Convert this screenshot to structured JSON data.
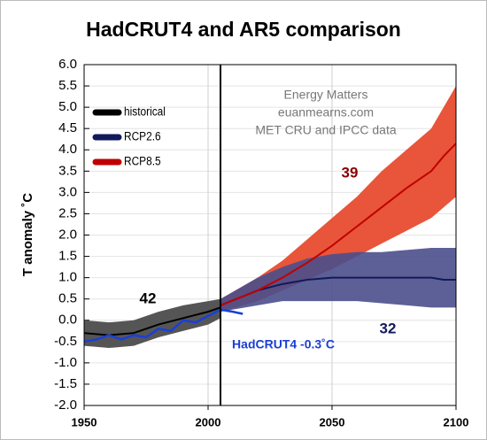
{
  "chart_data": {
    "type": "line",
    "title": "HadCRUT4 and AR5 comparison",
    "ylabel": "T anomaly ˚C",
    "xlim": [
      1950,
      2100
    ],
    "ylim": [
      -2,
      6
    ],
    "xticks": [
      1950,
      2000,
      2050,
      2100
    ],
    "yticks": [
      {
        "value": 6,
        "label": "6.0"
      },
      5.5,
      {
        "value": 5,
        "label": "5.0"
      },
      4.5,
      {
        "value": 4,
        "label": "4.0"
      },
      3.5,
      {
        "value": 3,
        "label": "3.0"
      },
      2.5,
      {
        "value": 2,
        "label": "2.0"
      },
      1.5,
      {
        "value": 1,
        "label": "1.0"
      },
      0.5,
      {
        "value": 0,
        "label": "0.0"
      },
      -0.5,
      {
        "value": -1,
        "label": "-1.0"
      },
      -1.5,
      {
        "value": -2,
        "label": "-2.0"
      }
    ],
    "grid": true,
    "vline": 2005,
    "annotations": [
      "Energy Matters",
      "euanmearns.com",
      "MET CRU and IPCC data",
      "39",
      "42",
      "32",
      "HadCRUT4 -0.3˚C"
    ],
    "series": [
      {
        "name": "historical",
        "color": "#000000",
        "band_color": "#555555",
        "x": [
          1950,
          1960,
          1970,
          1980,
          1990,
          2000,
          2005
        ],
        "values": [
          -0.3,
          -0.35,
          -0.3,
          -0.1,
          0.05,
          0.2,
          0.3
        ],
        "lower": [
          -0.6,
          -0.65,
          -0.6,
          -0.4,
          -0.25,
          -0.1,
          0.05
        ],
        "upper": [
          0.0,
          -0.05,
          0.0,
          0.2,
          0.35,
          0.45,
          0.5
        ]
      },
      {
        "name": "RCP2.6",
        "color": "#111a5a",
        "band_color": "#4a4f8c",
        "x": [
          2005,
          2020,
          2030,
          2040,
          2050,
          2060,
          2070,
          2080,
          2090,
          2095,
          2100
        ],
        "values": [
          0.35,
          0.7,
          0.85,
          0.95,
          1.0,
          1.0,
          1.0,
          1.0,
          1.0,
          0.95,
          0.95
        ],
        "lower": [
          0.2,
          0.35,
          0.45,
          0.45,
          0.45,
          0.45,
          0.4,
          0.35,
          0.3,
          0.3,
          0.3
        ],
        "upper": [
          0.5,
          1.0,
          1.25,
          1.45,
          1.55,
          1.6,
          1.6,
          1.65,
          1.7,
          1.7,
          1.7
        ]
      },
      {
        "name": "RCP8.5",
        "color": "#c00000",
        "band_color": "#e8553a",
        "x": [
          2005,
          2020,
          2030,
          2040,
          2050,
          2060,
          2070,
          2080,
          2090,
          2095,
          2100
        ],
        "values": [
          0.35,
          0.7,
          1.0,
          1.35,
          1.75,
          2.2,
          2.65,
          3.1,
          3.5,
          3.85,
          4.15
        ],
        "lower": [
          0.2,
          0.45,
          0.7,
          0.95,
          1.2,
          1.5,
          1.8,
          2.1,
          2.4,
          2.65,
          2.9
        ],
        "upper": [
          0.5,
          1.0,
          1.4,
          1.9,
          2.4,
          2.9,
          3.5,
          4.0,
          4.5,
          5.0,
          5.5
        ]
      },
      {
        "name": "HadCRUT4",
        "color": "#1a3fd6",
        "x": [
          1950,
          1955,
          1960,
          1965,
          1970,
          1975,
          1980,
          1985,
          1990,
          1995,
          2000,
          2005,
          2010,
          2014
        ],
        "values": [
          -0.5,
          -0.45,
          -0.35,
          -0.45,
          -0.35,
          -0.4,
          -0.2,
          -0.25,
          0.0,
          -0.05,
          0.1,
          0.25,
          0.2,
          0.15
        ]
      }
    ]
  }
}
